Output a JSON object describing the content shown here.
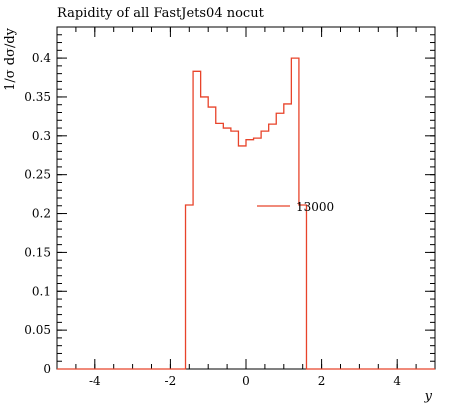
{
  "chart_data": {
    "type": "line",
    "title": "Rapidity of all FastJets04 nocut",
    "xlabel": "y",
    "ylabel": "1/σ dσ/dy",
    "xlim": [
      -5,
      5
    ],
    "ylim": [
      0,
      0.44
    ],
    "x_ticks": [
      -4,
      -2,
      0,
      2,
      4
    ],
    "y_ticks": [
      0,
      0.05,
      0.1,
      0.15,
      0.2,
      0.25,
      0.3,
      0.35,
      0.4
    ],
    "x_tick_labels": [
      "-4",
      "-2",
      "0",
      "2",
      "4"
    ],
    "y_tick_labels": [
      "0",
      "0.05",
      "0.1",
      "0.15",
      "0.2",
      "0.25",
      "0.3",
      "0.35",
      "0.4"
    ],
    "grid": false,
    "legend_position": "center-right",
    "series": [
      {
        "name": "13000",
        "color": "#e8432a",
        "style": "histogram",
        "bin_edges": [
          -5.0,
          -1.6,
          -1.4,
          -1.2,
          -1.0,
          -0.8,
          -0.6,
          -0.4,
          -0.2,
          0.0,
          0.2,
          0.4,
          0.6,
          0.8,
          1.0,
          1.2,
          1.4,
          1.6,
          5.0
        ],
        "values": [
          0,
          0.211,
          0.383,
          0.35,
          0.337,
          0.316,
          0.31,
          0.306,
          0.287,
          0.295,
          0.297,
          0.306,
          0.315,
          0.329,
          0.341,
          0.4,
          0.211,
          0
        ]
      }
    ]
  }
}
